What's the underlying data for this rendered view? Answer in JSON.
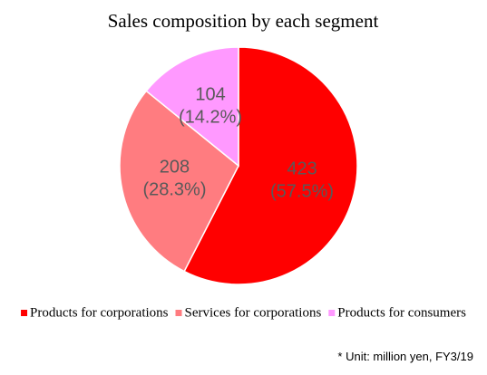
{
  "chart_data": {
    "type": "pie",
    "title": "Sales composition by each segment",
    "categories": [
      "Products for corporations",
      "Services for corporations",
      "Products for consumers"
    ],
    "values": [
      423,
      208,
      104
    ],
    "value_labels": [
      "423\n(57.5%)",
      "208\n(28.3%)",
      "104\n(14.2%)"
    ],
    "colors": [
      "#ff0000",
      "#ff7c80",
      "#ff99ff"
    ],
    "legend": "bottom",
    "note": "* Unit: million yen, FY3/19"
  }
}
